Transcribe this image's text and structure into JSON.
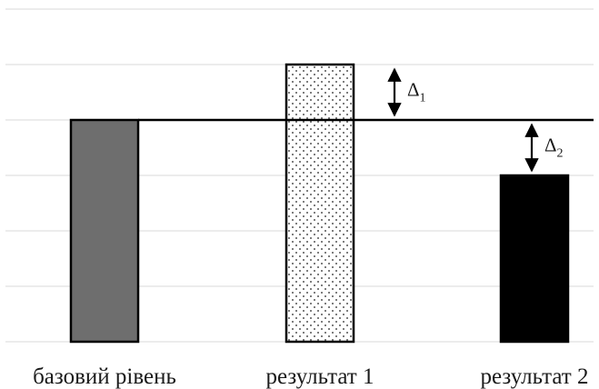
{
  "chart_data": {
    "type": "bar",
    "categories": [
      "базовий рівень",
      "результат 1",
      "результат 2"
    ],
    "values": [
      4,
      5,
      3
    ],
    "ylim": [
      0,
      6
    ],
    "grid": true,
    "bar_styles": [
      {
        "fill": "#6e6e6e",
        "pattern": "solid"
      },
      {
        "fill": "#ffffff",
        "pattern": "dotted"
      },
      {
        "fill": "#000000",
        "pattern": "solid"
      }
    ],
    "reference_line": {
      "value": 4
    },
    "annotations": [
      {
        "symbol": "Δ",
        "subscript": "1",
        "from": 4,
        "to": 5,
        "category_index": 1
      },
      {
        "symbol": "Δ",
        "subscript": "2",
        "from": 3,
        "to": 4,
        "category_index": 2
      }
    ]
  }
}
